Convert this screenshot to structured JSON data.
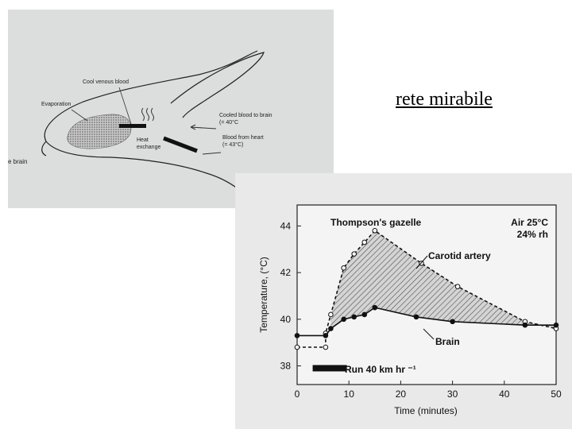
{
  "slide": {
    "title": "rete mirabile"
  },
  "diagram": {
    "labels": {
      "cool_venous_blood": "Cool venous blood",
      "evaporation": "Evaporation",
      "cooled_blood_line1": "Cooled blood to brain",
      "cooled_blood_line2": "(= 40°C",
      "heat_line1": "Heat",
      "heat_line2": "exchange",
      "blood_heart_line1": "Blood from heart",
      "blood_heart_line2": "(= 43°C)",
      "brain_fragment": "e brain"
    }
  },
  "chart_data": {
    "type": "line",
    "title": "Thompson's gazelle",
    "conditions_line1": "Air 25°C",
    "conditions_line2": "24% rh",
    "xlabel": "Time (minutes)",
    "ylabel": "Temperature, (°C)",
    "xlim": [
      0,
      50
    ],
    "ylim": [
      37.2,
      44.9
    ],
    "x_ticks": [
      "0",
      "10",
      "20",
      "30",
      "40",
      "50"
    ],
    "y_ticks": [
      "38",
      "40",
      "42",
      "44"
    ],
    "run_label": "Run 40 km hr ⁻¹",
    "run_interval": [
      3,
      9.6
    ],
    "series": [
      {
        "name": "Carotid artery",
        "style": "dashed",
        "marker": "open",
        "points": [
          [
            0,
            38.8
          ],
          [
            5.5,
            38.8
          ],
          [
            5.5,
            39.4
          ],
          [
            6.5,
            40.2
          ],
          [
            9,
            42.2
          ],
          [
            11,
            42.8
          ],
          [
            13,
            43.3
          ],
          [
            15,
            43.8
          ],
          [
            24,
            42.4
          ],
          [
            31,
            41.4
          ],
          [
            44,
            39.9
          ],
          [
            50,
            39.6
          ]
        ]
      },
      {
        "name": "Brain",
        "style": "solid",
        "marker": "filled",
        "points": [
          [
            0,
            39.3
          ],
          [
            5.5,
            39.3
          ],
          [
            6.5,
            39.6
          ],
          [
            9,
            40.0
          ],
          [
            11,
            40.1
          ],
          [
            13,
            40.2
          ],
          [
            15,
            40.5
          ],
          [
            23,
            40.1
          ],
          [
            30,
            39.9
          ],
          [
            44,
            39.75
          ],
          [
            50,
            39.75
          ]
        ]
      }
    ]
  }
}
